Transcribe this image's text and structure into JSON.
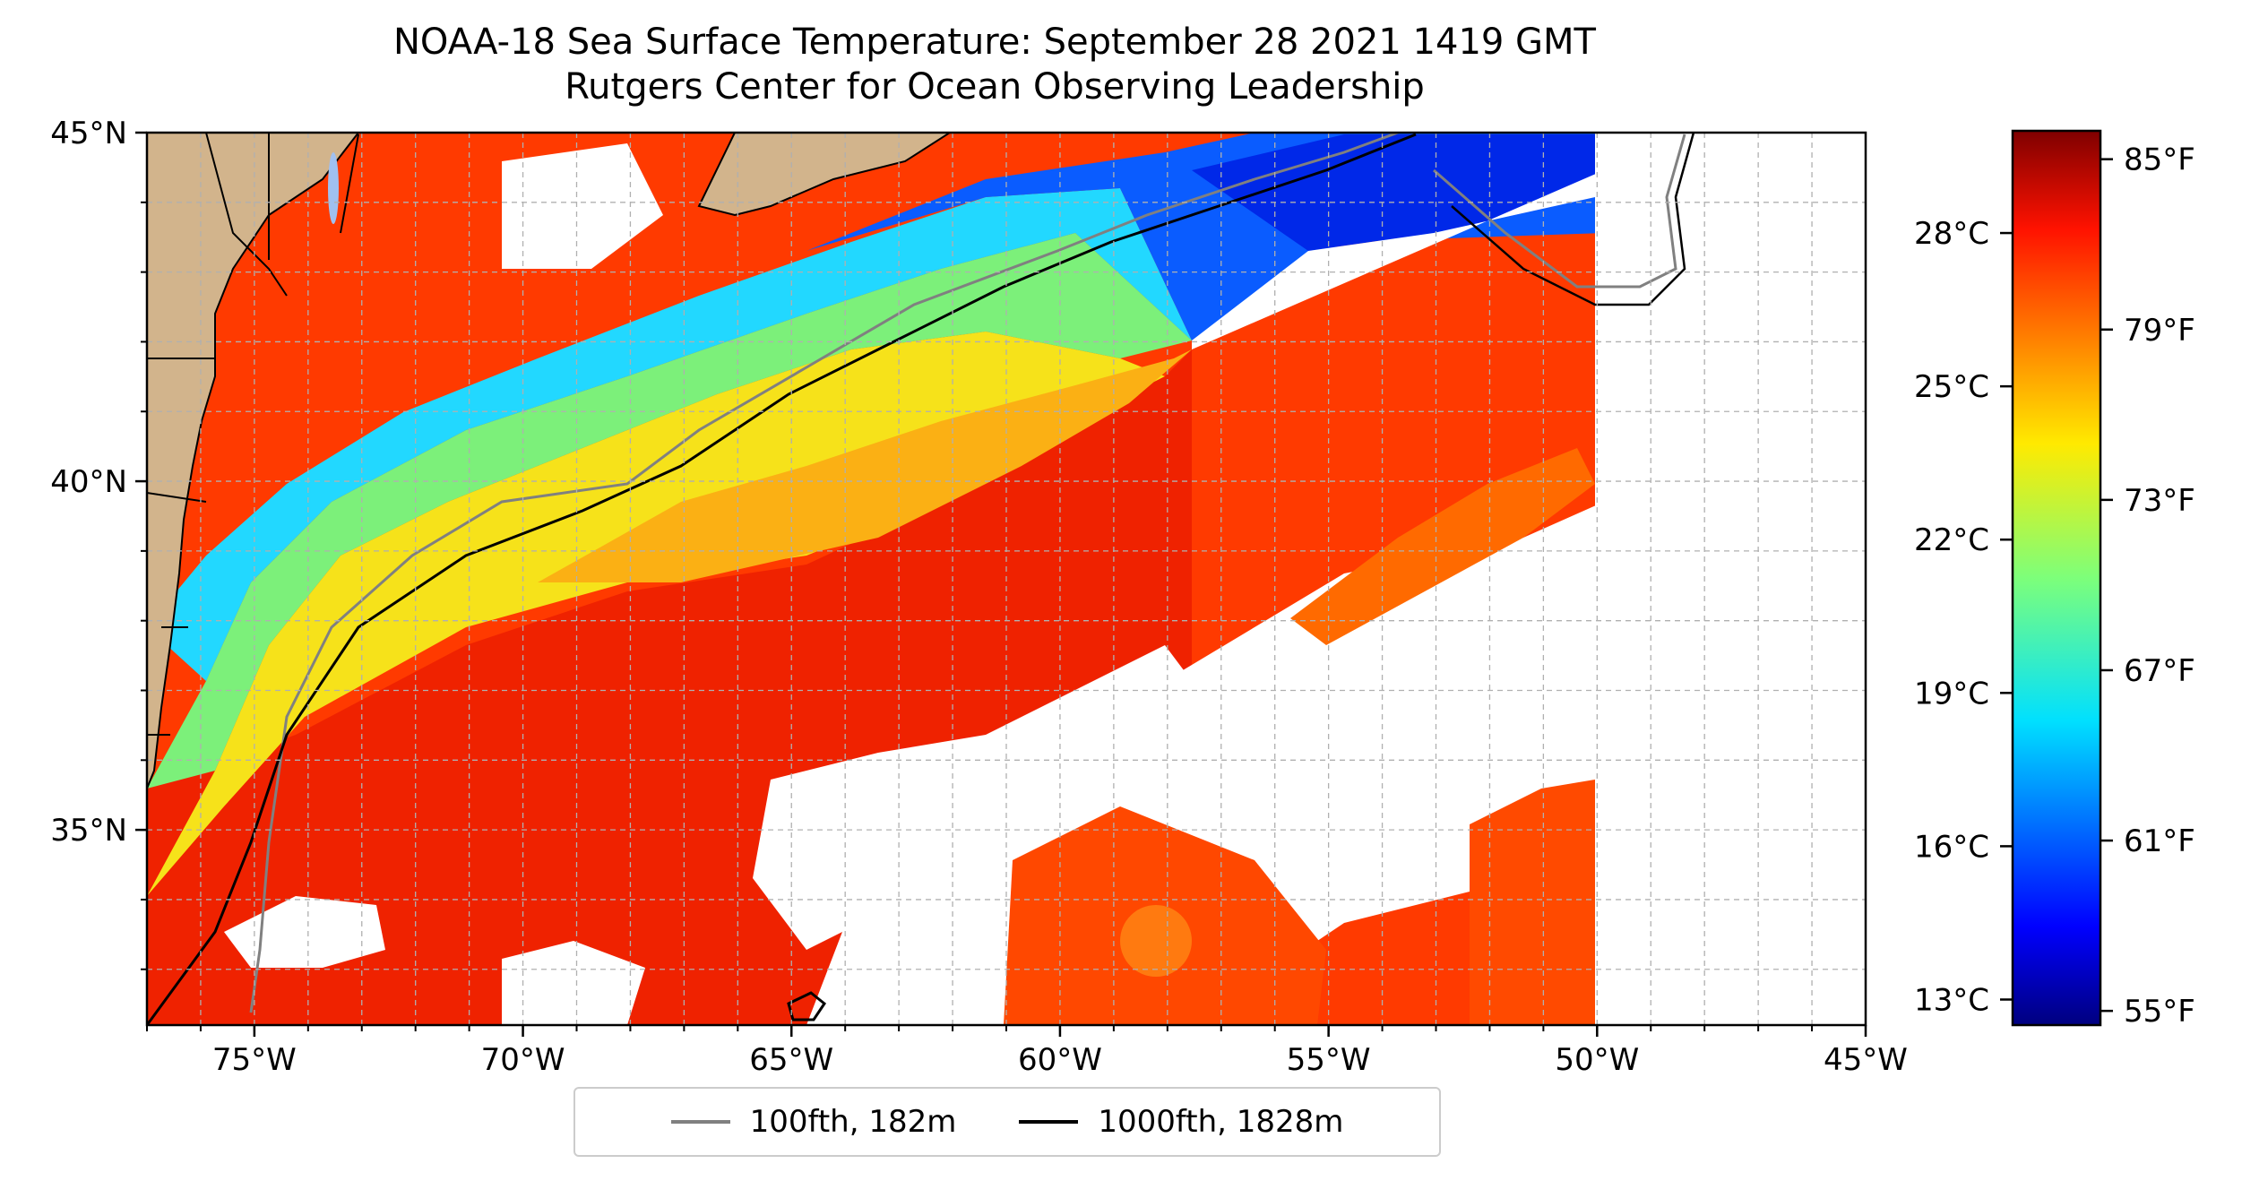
{
  "title": {
    "line1": "NOAA-18 Sea Surface Temperature: September 28 2021 1419 GMT",
    "line2": "Rutgers Center for Ocean Observing Leadership"
  },
  "map": {
    "lon_range": [
      -77,
      -45
    ],
    "lat_range": [
      32.2,
      45
    ],
    "lon_ticks": [
      {
        "value": -75,
        "label": "75°W"
      },
      {
        "value": -70,
        "label": "70°W"
      },
      {
        "value": -65,
        "label": "65°W"
      },
      {
        "value": -60,
        "label": "60°W"
      },
      {
        "value": -55,
        "label": "55°W"
      },
      {
        "value": -50,
        "label": "50°W"
      },
      {
        "value": -45,
        "label": "45°W"
      }
    ],
    "lat_ticks": [
      {
        "value": 45,
        "label": "45°N"
      },
      {
        "value": 40,
        "label": "40°N"
      },
      {
        "value": 35,
        "label": "35°N"
      }
    ],
    "grid": true,
    "colors": {
      "land": "#d2b48c",
      "no_data": "#ffffff",
      "isobath_100fth": "#808080",
      "isobath_1000fth": "#000000"
    }
  },
  "colorbar": {
    "colormap": "jet",
    "celsius_ticks": [
      {
        "value": 28,
        "label": "28°C"
      },
      {
        "value": 25,
        "label": "25°C"
      },
      {
        "value": 22,
        "label": "22°C"
      },
      {
        "value": 19,
        "label": "19°C"
      },
      {
        "value": 16,
        "label": "16°C"
      },
      {
        "value": 13,
        "label": "13°C"
      }
    ],
    "fahrenheit_ticks": [
      {
        "value": 85,
        "label": "85°F"
      },
      {
        "value": 79,
        "label": "79°F"
      },
      {
        "value": 73,
        "label": "73°F"
      },
      {
        "value": 67,
        "label": "67°F"
      },
      {
        "value": 61,
        "label": "61°F"
      },
      {
        "value": 55,
        "label": "55°F"
      }
    ],
    "range_f": [
      54.5,
      86
    ]
  },
  "legend": {
    "items": [
      {
        "label": "100fth, 182m",
        "color": "#808080"
      },
      {
        "label": "1000fth, 1828m",
        "color": "#000000"
      }
    ]
  }
}
